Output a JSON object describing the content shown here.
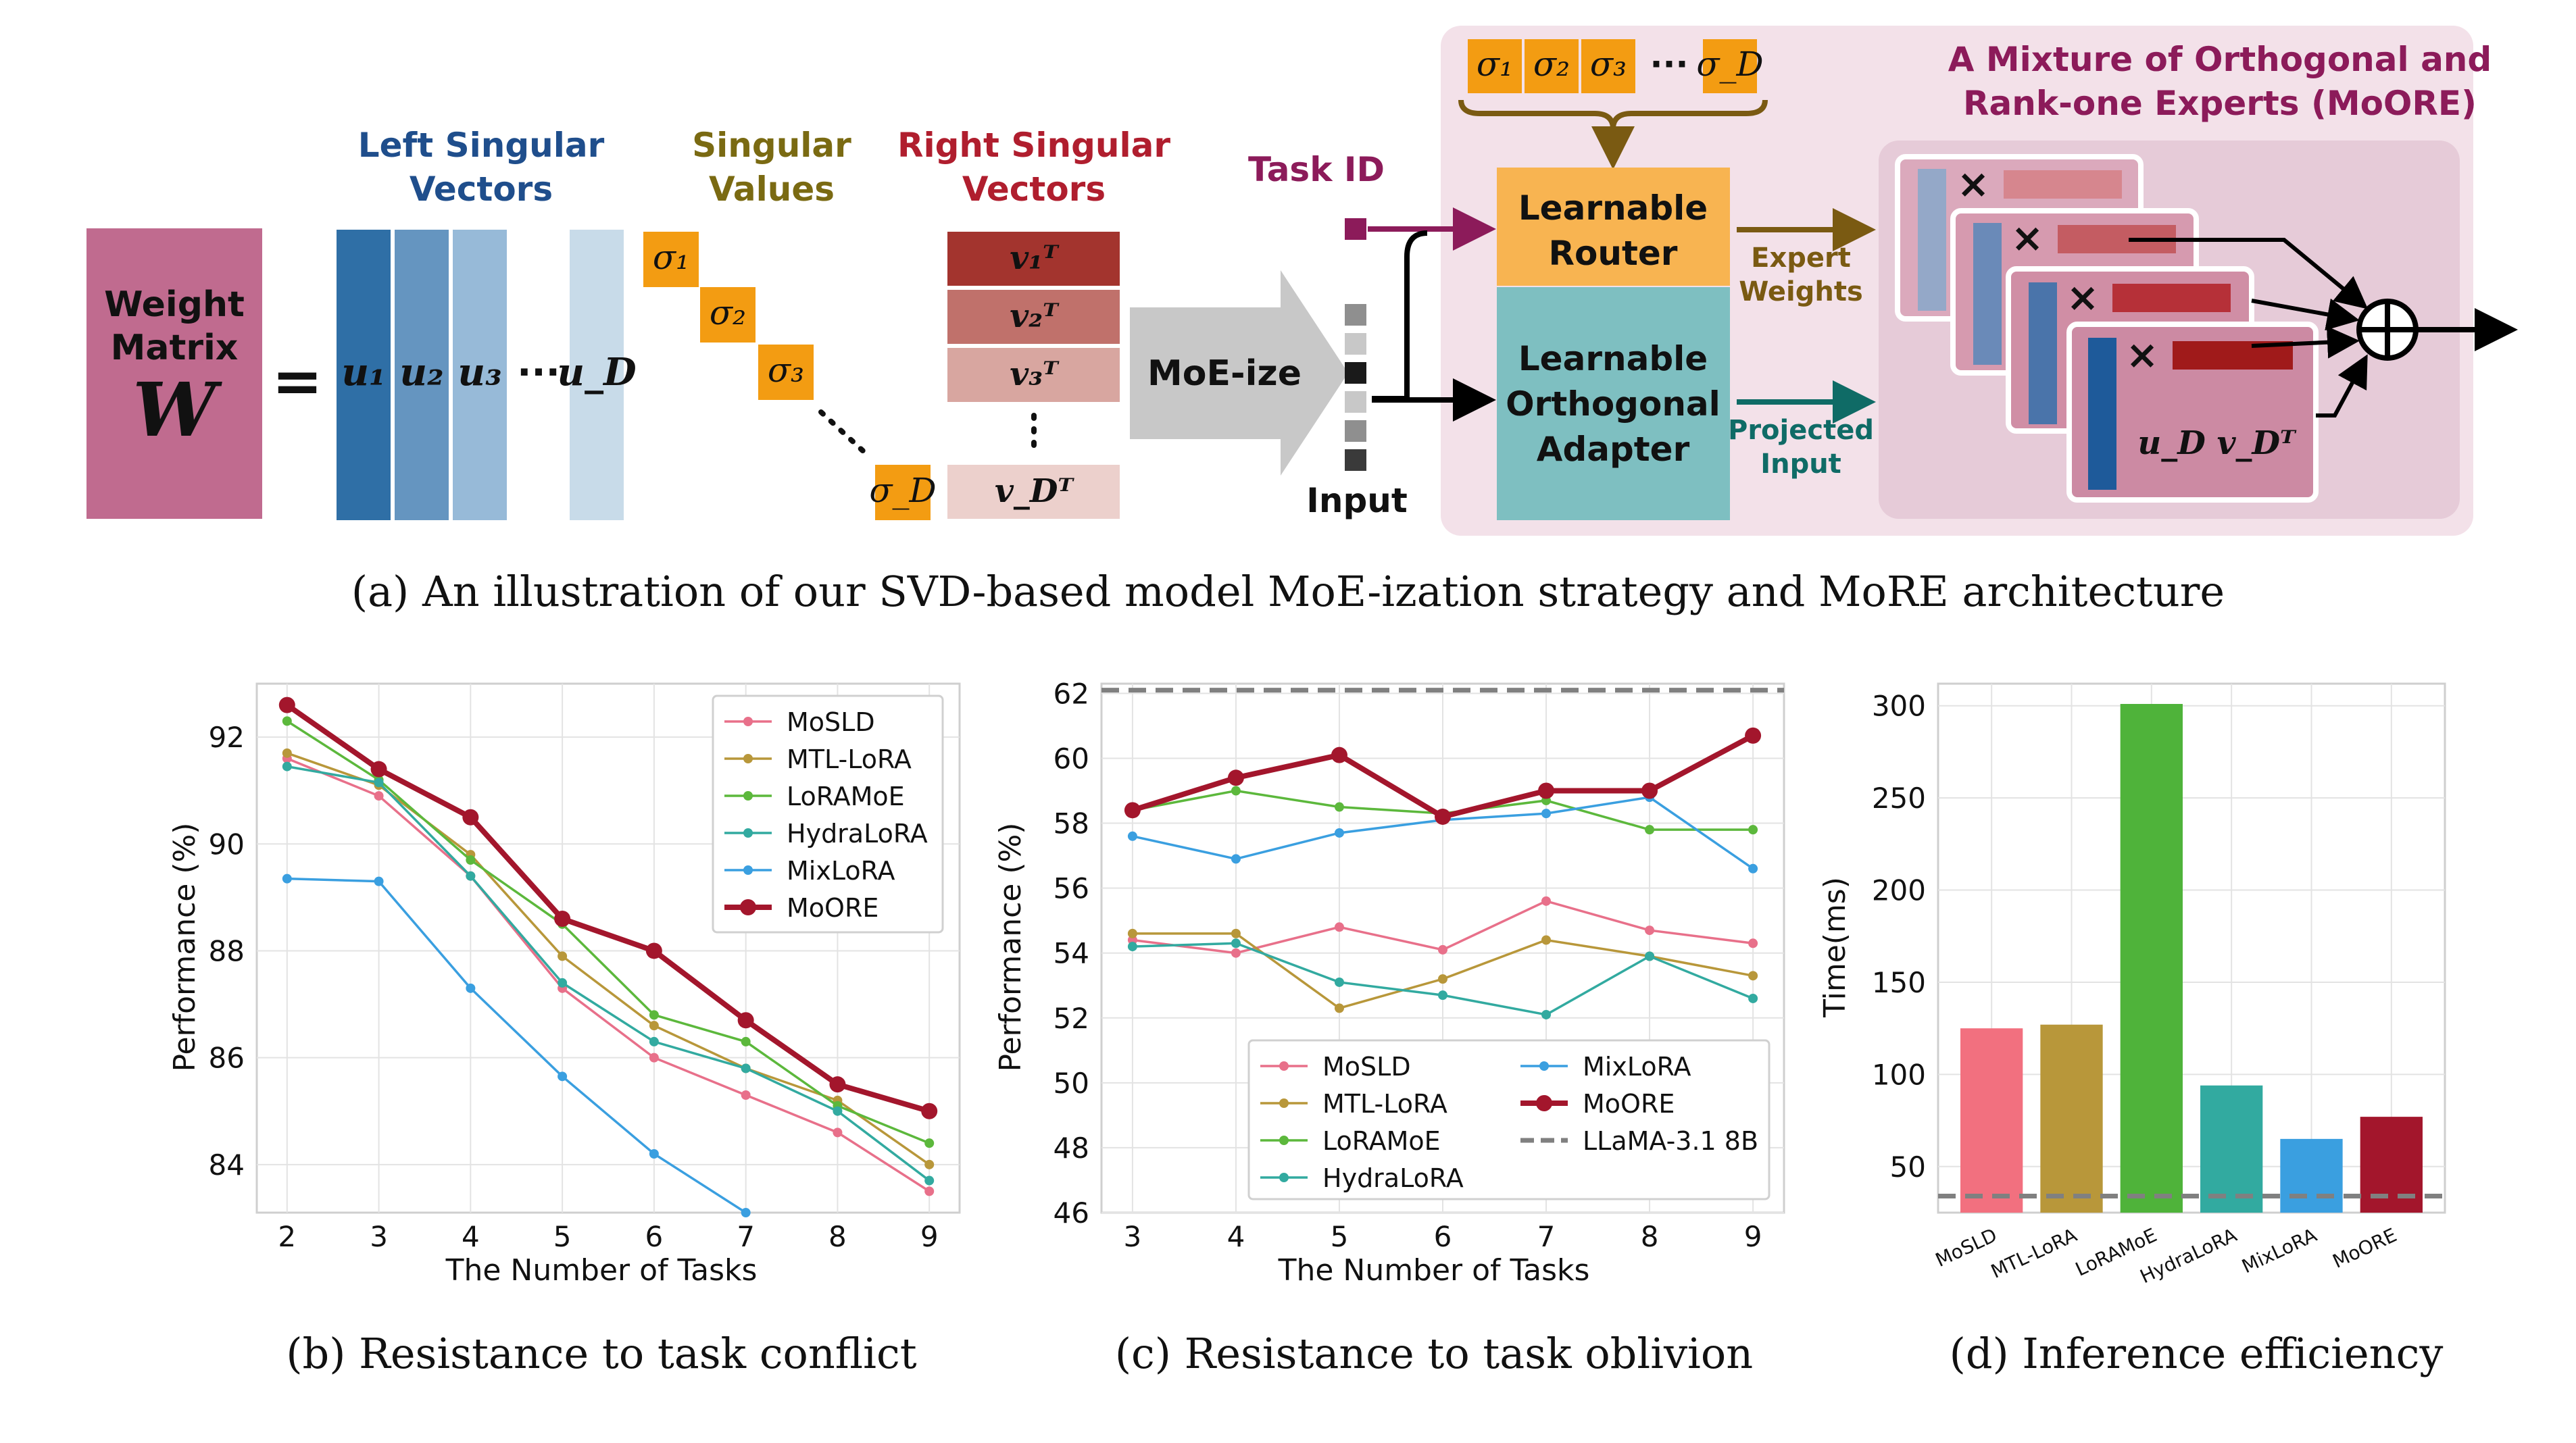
{
  "diagram": {
    "weight_title": "Weight Matrix",
    "weight_symbol": "W",
    "equals": "=",
    "left_title": "Left Singular Vectors",
    "sv_title": "Singular Values",
    "right_title": "Right Singular Vectors",
    "u_labels": [
      "u₁",
      "u₂",
      "u₃",
      "u_D"
    ],
    "sigma_labels": [
      "σ₁",
      "σ₂",
      "σ₃",
      "σ_D"
    ],
    "v_labels": [
      "v₁ᵀ",
      "v₂ᵀ",
      "v₃ᵀ",
      "v_Dᵀ"
    ],
    "moeize": "MoE-ize",
    "task_id": "Task ID",
    "input": "Input",
    "router": "Learnable Router",
    "adapter": "Learnable Orthogonal Adapter",
    "expert_weights": "Expert Weights",
    "projected_input": "Projected Input",
    "moore_title": "A Mixture of Orthogonal and Rank-one Experts (MoORE)",
    "expert_product": "u_D v_Dᵀ",
    "times": "×",
    "oplus": "⊕",
    "colors": {
      "weight": "#c06b8f",
      "router": "#f8b451",
      "adapter": "#7ebfc1",
      "panel": "#f3e1e9",
      "inner": "#e6cbd8",
      "title": "#8c1b5a",
      "blue": "#1f4e8c",
      "olive": "#7a6a12",
      "red": "#b01e2e",
      "teal": "#0f6b66",
      "orange": "#f39c12"
    }
  },
  "captions": {
    "a": "(a)  An illustration of our SVD-based model MoE-ization strategy and MoRE architecture",
    "b": "(b)  Resistance to task conflict",
    "c": "(c)  Resistance to task oblivion",
    "d": "(d)  Inference efficiency"
  },
  "chart_data": [
    {
      "type": "line",
      "xlabel": "The Number of Tasks",
      "ylabel": "Performance (%)",
      "x": [
        2,
        3,
        4,
        5,
        6,
        7,
        8,
        9
      ],
      "xlim": [
        1.67,
        9.33
      ],
      "ylim": [
        83.1,
        93.0
      ],
      "yticks": [
        84,
        86,
        88,
        90,
        92
      ],
      "legend": "top-right",
      "series": [
        {
          "name": "MoSLD",
          "color": "#e8708a",
          "values": [
            91.6,
            90.9,
            89.4,
            87.3,
            86.0,
            85.3,
            84.6,
            83.5
          ]
        },
        {
          "name": "MTL-LoRA",
          "color": "#b8973a",
          "values": [
            91.7,
            91.1,
            89.8,
            87.9,
            86.6,
            85.8,
            85.2,
            84.0
          ]
        },
        {
          "name": "LoRAMoE",
          "color": "#5cb83c",
          "values": [
            92.3,
            91.2,
            89.7,
            88.5,
            86.8,
            86.3,
            85.1,
            84.4
          ]
        },
        {
          "name": "HydraLoRA",
          "color": "#32aaa0",
          "values": [
            91.45,
            91.15,
            89.4,
            87.4,
            86.3,
            85.8,
            85.0,
            83.7
          ]
        },
        {
          "name": "MixLoRA",
          "color": "#3a9fe0",
          "values": [
            89.35,
            89.3,
            87.3,
            85.65,
            84.2,
            83.1,
            null,
            null
          ]
        },
        {
          "name": "MoORE",
          "color": "#a3162c",
          "values": [
            92.6,
            91.4,
            90.5,
            88.6,
            88.0,
            86.7,
            85.5,
            85.0
          ]
        }
      ]
    },
    {
      "type": "line",
      "xlabel": "The Number of Tasks",
      "ylabel": "Performance (%)",
      "x": [
        3,
        4,
        5,
        6,
        7,
        8,
        9
      ],
      "xlim": [
        2.7,
        9.3
      ],
      "ylim": [
        46,
        62.3
      ],
      "yticks": [
        46,
        48,
        50,
        52,
        54,
        56,
        58,
        60,
        62
      ],
      "legend": "bottom",
      "baseline": {
        "name": "LLaMA-3.1 8B",
        "value": 62.1,
        "color": "#808080"
      },
      "series": [
        {
          "name": "MoSLD",
          "color": "#e8708a",
          "values": [
            54.4,
            54.0,
            54.8,
            54.1,
            55.6,
            54.7,
            54.3
          ]
        },
        {
          "name": "MTL-LoRA",
          "color": "#b8973a",
          "values": [
            54.6,
            54.6,
            52.3,
            53.2,
            54.4,
            53.9,
            53.3
          ]
        },
        {
          "name": "LoRAMoE",
          "color": "#5cb83c",
          "values": [
            58.4,
            59.0,
            58.5,
            58.3,
            58.7,
            57.8,
            57.8
          ]
        },
        {
          "name": "HydraLoRA",
          "color": "#32aaa0",
          "values": [
            54.2,
            54.3,
            53.1,
            52.7,
            52.1,
            53.9,
            52.6
          ]
        },
        {
          "name": "MixLoRA",
          "color": "#3a9fe0",
          "values": [
            57.6,
            56.9,
            57.7,
            58.1,
            58.3,
            58.8,
            56.6
          ]
        },
        {
          "name": "MoORE",
          "color": "#a3162c",
          "values": [
            58.4,
            59.4,
            60.1,
            58.2,
            59.0,
            59.0,
            60.7
          ]
        }
      ]
    },
    {
      "type": "bar",
      "ylabel": "Time(ms)",
      "categories": [
        "MoSLD",
        "MTL-LoRA",
        "LoRAMoE",
        "HydraLoRA",
        "MixLoRA",
        "MoORE"
      ],
      "values": [
        125,
        127,
        301,
        94,
        65,
        77
      ],
      "colors": [
        "#f2707f",
        "#b8973a",
        "#4fb33a",
        "#32aaa0",
        "#3a9fe0",
        "#a3162c"
      ],
      "ylim": [
        25,
        312
      ],
      "yticks": [
        50,
        100,
        150,
        200,
        250,
        300
      ],
      "baseline": {
        "value": 34,
        "color": "#808080"
      }
    }
  ]
}
